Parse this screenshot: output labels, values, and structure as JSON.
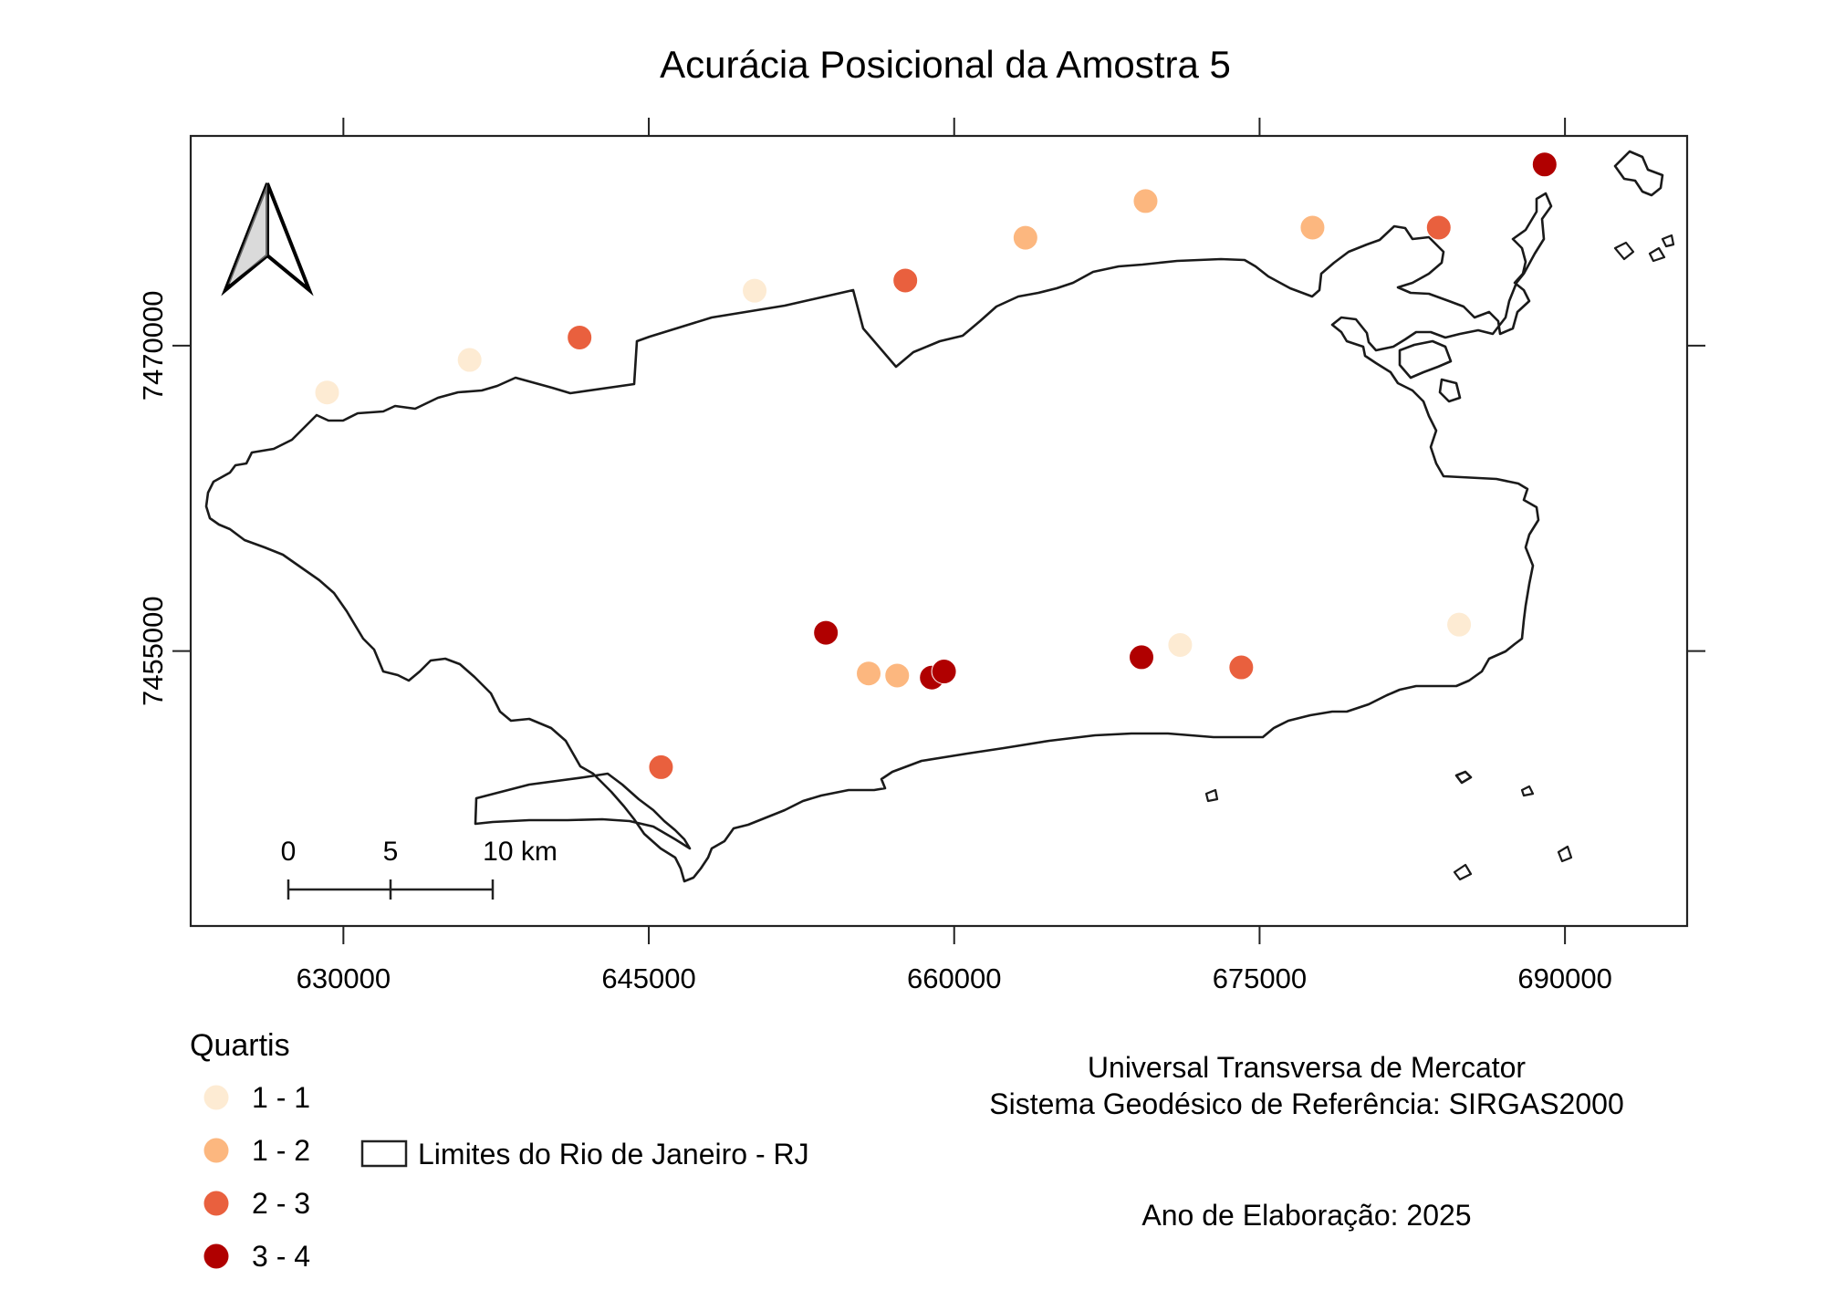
{
  "title": "Acurácia Posicional da Amostra 5",
  "axes": {
    "x_ticks": [
      "630000",
      "645000",
      "660000",
      "675000",
      "690000"
    ],
    "y_ticks": [
      "7470000",
      "7455000"
    ]
  },
  "scale_bar": {
    "labels": [
      "0",
      "5",
      "10 km"
    ]
  },
  "legend": {
    "title": "Quartis",
    "classes": [
      {
        "label": "1 - 1",
        "color": "#fdebd3"
      },
      {
        "label": "1 - 2",
        "color": "#fcb77f"
      },
      {
        "label": "2 - 3",
        "color": "#e9603e"
      },
      {
        "label": "3 - 4",
        "color": "#b00000"
      }
    ],
    "boundary_label": "Limites do Rio de Janeiro - RJ"
  },
  "info": {
    "projection": "Universal Transversa de Mercator",
    "datum": "Sistema Geodésico de Referência: SIRGAS2000",
    "year": "Ano de Elaboração: 2025"
  },
  "icons": {
    "north_arrow": "north-arrow-icon"
  },
  "chart_data": {
    "type": "scatter",
    "title": "Acurácia Posicional da Amostra 5",
    "xlim": [
      622500,
      696000
    ],
    "ylim": [
      7441500,
      7480300
    ],
    "x_ticks": [
      630000,
      645000,
      660000,
      675000,
      690000
    ],
    "y_ticks": [
      7470000,
      7455000
    ],
    "legend_placement": "bottom-left",
    "points": [
      {
        "x": 629200,
        "y": 7467700,
        "q": 0
      },
      {
        "x": 636200,
        "y": 7469300,
        "q": 0
      },
      {
        "x": 641600,
        "y": 7470400,
        "q": 2
      },
      {
        "x": 650200,
        "y": 7472700,
        "q": 0
      },
      {
        "x": 657600,
        "y": 7473200,
        "q": 2
      },
      {
        "x": 663500,
        "y": 7475300,
        "q": 1
      },
      {
        "x": 669400,
        "y": 7477100,
        "q": 1
      },
      {
        "x": 677600,
        "y": 7475800,
        "q": 1
      },
      {
        "x": 683800,
        "y": 7475800,
        "q": 2
      },
      {
        "x": 689000,
        "y": 7478900,
        "q": 3
      },
      {
        "x": 684800,
        "y": 7456300,
        "q": 0
      },
      {
        "x": 671100,
        "y": 7455300,
        "q": 0
      },
      {
        "x": 653700,
        "y": 7455900,
        "q": 3
      },
      {
        "x": 655800,
        "y": 7453900,
        "q": 1
      },
      {
        "x": 657200,
        "y": 7453800,
        "q": 1
      },
      {
        "x": 658900,
        "y": 7453700,
        "q": 3
      },
      {
        "x": 659500,
        "y": 7454000,
        "q": 3
      },
      {
        "x": 669200,
        "y": 7454700,
        "q": 3
      },
      {
        "x": 674100,
        "y": 7454200,
        "q": 2
      },
      {
        "x": 645600,
        "y": 7449300,
        "q": 2
      }
    ]
  }
}
